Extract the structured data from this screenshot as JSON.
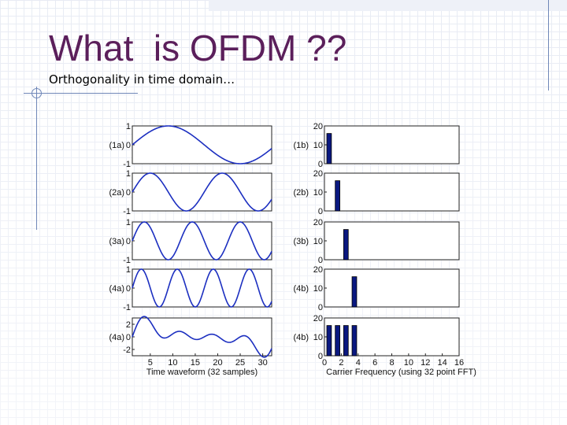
{
  "slide": {
    "title": "What  is OFDM ??",
    "subtitle": "Orthogonality in time domain…"
  },
  "colors": {
    "title": "#5b1f5b",
    "wave": "#1c2fc0",
    "bar": "#0a1880",
    "accent_line": "#6f87b8"
  },
  "chart_data": [
    {
      "type": "line",
      "label": "(1a)",
      "x": [
        1,
        32
      ],
      "cycles": 1,
      "amplitude": 1,
      "ylim": [
        -1,
        1
      ],
      "yticks": [
        "1",
        "0",
        "-1"
      ]
    },
    {
      "type": "bar",
      "label": "(1b)",
      "categories": [
        1
      ],
      "values": [
        16
      ],
      "ylim": [
        0,
        20
      ],
      "yticks": [
        "20",
        "10",
        "0"
      ]
    },
    {
      "type": "line",
      "label": "(2a)",
      "x": [
        1,
        32
      ],
      "cycles": 2,
      "amplitude": 1,
      "ylim": [
        -1,
        1
      ],
      "yticks": [
        "1",
        "0",
        "-1"
      ]
    },
    {
      "type": "bar",
      "label": "(2b)",
      "categories": [
        2
      ],
      "values": [
        16
      ],
      "ylim": [
        0,
        20
      ],
      "yticks": [
        "20",
        "10",
        "0"
      ]
    },
    {
      "type": "line",
      "label": "(3a)",
      "x": [
        1,
        32
      ],
      "cycles": 3,
      "amplitude": 1,
      "ylim": [
        -1,
        1
      ],
      "yticks": [
        "1",
        "0",
        "-1"
      ]
    },
    {
      "type": "bar",
      "label": "(3b)",
      "categories": [
        3
      ],
      "values": [
        16
      ],
      "ylim": [
        0,
        20
      ],
      "yticks": [
        "20",
        "10",
        "0"
      ]
    },
    {
      "type": "line",
      "label": "(4a)",
      "x": [
        1,
        32
      ],
      "cycles": 4,
      "amplitude": 1,
      "ylim": [
        -1,
        1
      ],
      "yticks": [
        "1",
        "0",
        "-1"
      ]
    },
    {
      "type": "bar",
      "label": "(4b)",
      "categories": [
        4
      ],
      "values": [
        16
      ],
      "ylim": [
        0,
        20
      ],
      "yticks": [
        "20",
        "10",
        "0"
      ]
    },
    {
      "type": "line",
      "label": "(4a)",
      "x": [
        1,
        32
      ],
      "components": [
        1,
        2,
        3,
        4
      ],
      "ylim": [
        -3,
        3
      ],
      "yticks": [
        "2",
        "0",
        "-2"
      ],
      "yticks_values": [
        2,
        0,
        -2
      ],
      "xticks": [
        "5",
        "10",
        "15",
        "20",
        "25",
        "30"
      ],
      "xtick_values": [
        5,
        10,
        15,
        20,
        25,
        30
      ],
      "xlabel": "Time waveform (32 samples)"
    },
    {
      "type": "bar",
      "label": "(4b)",
      "categories": [
        1,
        2,
        3,
        4
      ],
      "values": [
        16,
        16,
        16,
        16
      ],
      "ylim": [
        0,
        20
      ],
      "yticks": [
        "20",
        "10",
        "0"
      ],
      "xlim": [
        0,
        16
      ],
      "xticks": [
        "0",
        "2",
        "4",
        "6",
        "8",
        "10",
        "12",
        "14",
        "16"
      ],
      "xtick_values": [
        0,
        2,
        4,
        6,
        8,
        10,
        12,
        14,
        16
      ],
      "xlabel": "Carrier Frequency (using 32 point FFT)"
    }
  ]
}
